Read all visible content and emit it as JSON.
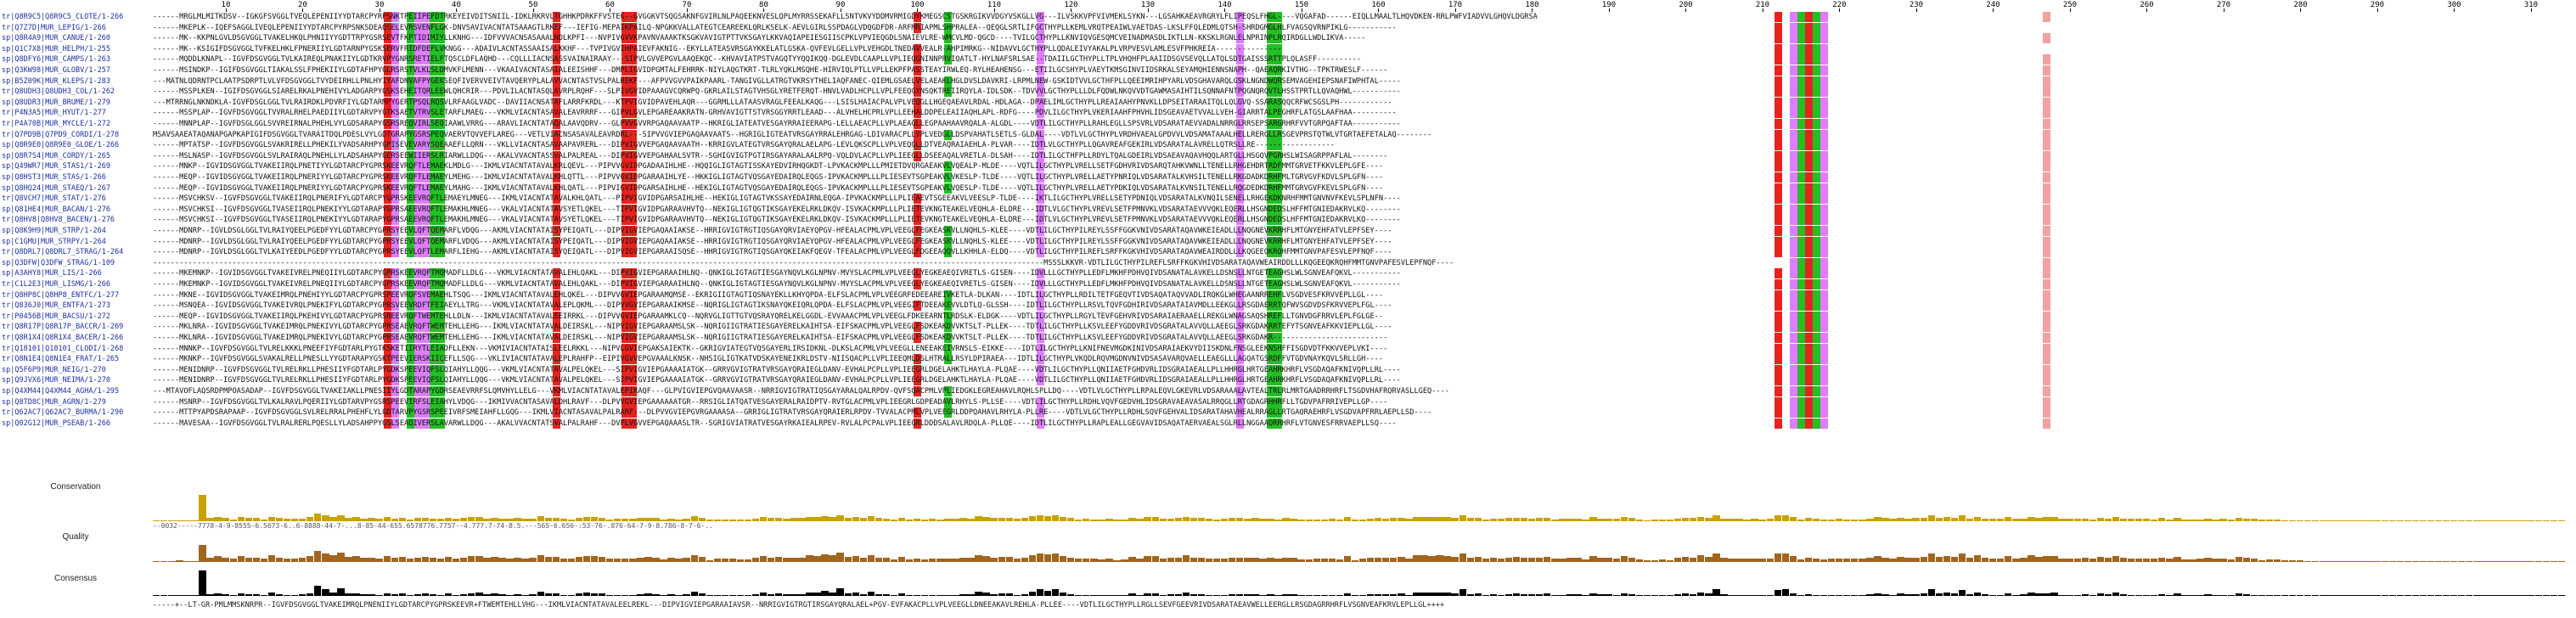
{
  "ruler": {
    "ticks": [
      "10",
      "20",
      "30",
      "40",
      "50",
      "60",
      "70",
      "80",
      "90",
      "100",
      "110",
      "120",
      "130",
      "140",
      "150",
      "160",
      "170",
      "180",
      "190",
      "200",
      "210",
      "220",
      "230",
      "240",
      "250",
      "260",
      "270",
      "280",
      "290",
      "300",
      "310"
    ]
  },
  "annotation_labels": {
    "conservation": "Conservation",
    "quality": "Quality",
    "consensus": "Consensus"
  },
  "sequences": [
    {
      "name": "tr|Q8R9C5|Q8R9C5_CLOTE/1-266",
      "seq": "------MRGLMLMITKDSV--IGKGFSVGGLTVEQLEPENIIYYDTARCPYRPSNKTPEIIPEFDTRKEYEIVDITSNIIL-IDKLRKRVLTGHHKPDRKFFVSTEG--GVGGKVTSQGSAKNFGVIRLNLPAQEEKNVESLQPLMYRRSSEKAFLLSNTVKVYDDMVRMIGDYKMEGSCSTGSKRGIKVVDGYVSKGLLVG---ILVSKKVPFVIVMEKLSYKN---LGSAHKAEAVRGRYLFLIPEQSLFHGL----VQGAFAD------EIQLLMAALTLHQVDKEN-RRLPWFVIADVVLGHQVLDGRSAFPLFAVQTIDNLYE-----"
    },
    {
      "name": "tr|Q7Z7D|MUR_LEPIG/1-266",
      "seq": "------MKEPLK--IQEFSAGGLIVEQLEPENIIYYDTARCPYRPSNKSDEAQSELEVRSVENFLGK-DNVSAVIVACNTATSAAAGTLRKEF---IEFIG-MEPAIKPAILQ-NPGKKVALLATEGTCEAREEKLQRLKSELK-AEVLGIRLSSPDAGLVDQGDFDR-ARFMRIAPMLSHPRALEA--QEQGLSRTLIFGCTHYPLLKEMLVRQTPEAIWLVAETDAS-LKSLFFQLEDMLQTSH-SHRDGMGLHLFVAGSQVRNPIKLG-----------"
    },
    {
      "name": "sp|Q8R4A9|MUR_CANUE/1-260",
      "seq": "------MK--KKPNLGVLDSGVGGLTVAKELHKQLPHNIIYYGDTTRPYGSRSEVTFKPTIDIMIYLLKNHG---IDFVVVACNSASAAALNDLKPFI---NVPIVGVVKPAVNVAAAKTKSGKVAVIGTPTTVKSGAYLKKVAQIAPEIESGIISCPKLVPVIEQGDLSNAIEVLRE-WMCVLMD-QGCD----TVILGCTHYPLLKNVIQVGESQMCVEINADMASDLIKTLLN-KKSKLRGNLELNPRINPLRQIRDGLLWDLIKVA-----"
    },
    {
      "name": "sp|Q1C7X8|MUR_HELPH/1-255",
      "seq": "------MK--KSIGIFDSGVGGLTVFKELHKLFPNERIIYLGDTARNPYGSKSERVFRIDFDEFLVKNGG---ADAIVLACNTASSAAISALKKHF---TVPIVGVIHPAIEVFAKNIG--EKYLLATEASVRSGAYKKELATLGSKA-QVFEVLGELLVPLVEHGDLTNEDAVVEALR-AHPIMRKG--NIDAVVLGCTHYPLLQDALEIVYAKALPLVRPVESVLAMLESVFPHKREIA---------------"
    },
    {
      "name": "sp|Q8DFY6|MUR_CAMPS/1-263",
      "seq": "------MQDDLKNAPL--IGVFDSGVGGLTVLKAIREQLPNAKIIYLGDTKRVPYGNRSRETIELFTQSCLDFLAQHD---CQLLLIACNSASSVAINAIRAAY---SIPVLGVVEPGVLAAQEKQC--KHVAVIATPSTVAGQTYYQQIKQQ-DGLEVDLCAAPLLVPLIEQGNINNPRVIQATLT-HYLNAFSRLSAE--TDAIILGCTHYPLLTPLVHQHFPLAAIIDSGVSEVQLLATQLSDTGAISSSRTTPLQLASFF----------"
    },
    {
      "name": "sp|Q3KW98|MUR_GLOBV/1-257",
      "seq": "------MSINDKP--IGIFDSGVGGLTIAKALSSLFPHEKIIYLGDTAFHPYGLRSRSTVLKLSLDMVKFLMENN---VKAAIVACNTASAIALEEISHHF---DMPLIGVIDPGMTALFEHRRK-NIYLAQGTKRT-TLRLYQKLMSQHE-HIRVIQLPTLLVPLLEKPFPASSTEAYIRWLEQ-RYLHEAHENSG---ETIILGCSHYPLVAEYTKMSGINVIIDSRKALSEYAMQHIENNSNAPH--QAEAQRKIVTHG--TPKTRWESLF------"
    },
    {
      "name": "sp|B5Z09K|MUR_KLEPS/1-283",
      "seq": "---MATNLQDRNTPCLAATPSDRPTLVLVFDSGVGGLTVYDEIRHLLPNLHYIYAFDNVAFPYGEKSEQFIVERVVEIVTAVQERYPLALAVVACNTASTVSLPALREKF---AFPVVGVVPAIKPAARL-TANGIVGLLATRGTVKRSYTHELIAQFANEC-QIEMLGSAELVELAEAKLHGLDVSLDAVKRI-LRPMLNEW-GSKIDTVVLGCTHFPLLQEEIMRIHPYARLVDSGHAVARQLGSKLNGNDWQRSEMVAGEHIEPSNAFIWPHTAL-----"
    },
    {
      "name": "tr|Q8UDH3|Q8UDH3_COL/1-262",
      "seq": "------MSSPLKEN--IGIFDSGVGGLSIARELRKALPNEHIVYLADGARPYGSKSEHEITQRLEEWLQHCRIR---PDVLILACNTASQLAVRPLRQHF---SLPIVGVIDPAAAGVCQRWPQ-GKRLAILSTAGTVHSGLYRETFERQT-HNVLVADLHCPLLVPLFEEQGYNSQKTREIIRQYLA-IDLSDK--TDVVVLGCTHYPLLLDLFQDWLNKQVVDTGAWMASAIHTILSQNNAFNTPQGNQRQVTLHSSTPRTLLQVAQHWL-----------"
    },
    {
      "name": "sp|Q8UDR3|MUR_BRUME/1-279",
      "seq": "---MTRRNGLNKNDKLA-IGVFDSGLGGLTVLRAIRDKLPDVRFIYLGDTARMPYGERTPSQLRQSVLRFAAGLVADC--DAVIIACNSATAFLARRFKRDL---KTPVIGVIDPAVEHLAQR---GGRMLLLATAASVRAGLFEEALKAQG---LSISLHAIACPALVPLVEQGLLHGEQAEAVLRDAL-HDLAGA--DPAELIMLGCTHYPLLREAIAAHYPNVKLLDPSEITARAAITQLLQLGVQ-SSARASQQCRFWCSGSLPH------------"
    },
    {
      "name": "tr|P4N3A5|MUR_HYUT/1-277",
      "seq": "------MSSPLAP--IGVFDSGVGGLTVVRALRHELPAEDIIYLGDTARVPYGTKSAETVTRVSLETARFLMAEG---VKMLVIACNTASAVALEAVRRRF---GIPVLGVLEPGAREAAKRATN-GRHVAVIGTTSTVRSGGYRRTLEAAD---ALVHELHCPRLVPLLEEHALDDPELEAIIAQHLAPL-RDFG----PDVLILGCTHYPLVKERIAAHFPHVHLIDSGEAVAETVVALLVEH-GIARRTALPEGHRFLATGSLAAFHAA----------"
    },
    {
      "name": "tr|P4A70B|MUR_MYCLE/1-272",
      "seq": "------MNNPLAP--IGVFDSGLGGLSVVREIRNALPHEHLVYLGDSARAPYGSRSREQVIRLSEQIAAWLVRRG---ARAVLIACNTATAQALAAVQDRV---GLPVVGVVRPGAQAAVAATP--HKRIGLIATEATVESGAYRRAIEERAPG-LELLAEACPLLVPLAEAGLLEGPAAHAAVRQALA-ALGDL----VDTLILGCTHYPLLRAHLEGLLSPSVRLVDSARATAEVVADALNRRGLRRSEPSARGRHRFVVTGRPQAFTAA-----------"
    },
    {
      "name": "tr|Q7PD9B|Q7PD9_CORDI/1-278",
      "seq": "MSAVSAAEATAQANAPGAPKAPIGIFDSGVGGLTVARAITDQLPDESLVYLGDTGRAPYGSRSPEQVAERVTQVVEFLAREG---VETLVIACNSASAVALEAVRDRL---SIPVVGVIEPGAQAAVAATS--HGRIGLIGTEATVRSGAYRRALEHRGAG-LDIVARACPLLVPLVEDGLLDSPVAHATLSETLS-GLDAL----VDTLVLGCTHYPLVRDHVAEALGPDVVLVDSAMATAAALHELLRERGLLRSGEVPRSTQTWLVTGRTAEFETALAQ--------"
    },
    {
      "name": "sp|Q8R9E0|Q8R9E0_GLOE/1-266",
      "seq": "------MPTATSP--IGVFDSGVGGLSVAKRIRELLPHEKILYVADSARHPYGPISEVEVARYSQEAAEFLLQRN---VKLLVIACNTASAVAAPAVRERL---DIPVIGVVEPGAQAAVAATH--KRRIGVLATEGTVRSGAYQRALAELAPG-LEVLQKSCPLLVPLVEQGLLDTVEAQRAIAEHLA-PLVAR----IDTLVLGCTHYPLLQGAVREAFGEKIRLVDSARATALAVRELLQTRSLLRE------------------"
    },
    {
      "name": "sp|Q8R7S4|MUR_CORDY/1-265",
      "seq": "------MSLNASP--IGVFDSGVGGLSVLRAIRAQLPNEHLLYLADSAHAPYGERSEEWIIERSLRIARWLLDQG---AKALVVACNTASSVALPALREAL---DIPVIGVVEPGAHAALSVTR--SGHIGVIGTPGTIRSGAYARALAALRPQ-VQLDVLACPLLVPLIEEGLLDSEEAQALVRETLA-DLSAH----IDTLILGCTHFPLLRDYLTQALGDEIRLVDSAEAVAQAVHQQLARTGLLHSGQVPGRHSLWISAGRPPAFLAL--------"
    },
    {
      "name": "sp|Q49WR7|MUR_STAS1/1-269",
      "seq": "------MNKP--IGVIDSGVGGLTVAKEIIRQLPNETIYYLGDTARCPYGPRSKEEVRQFTLEMAEKLMDLG---IKMLVIACNTATAVALKRLQEVL---PIPVVGVIDPGADAAIHLHE--HQQIGLIGTAGTISSKAYEDVIRHQGKDT-LPVKACKMPLLLPMIETDVQRGAEAKVLVQEALP-MLDE----VQTLILGCTHYPLVRELLSETFGDHVRIVDSARQTAHKVWNLLTENELLRHGEHDRTRDFMMTGRVETFKKVLEPLGFE----"
    },
    {
      "name": "sp|Q8HST3|MUR_STAS/1-266",
      "seq": "------MEQP--IGVIDSGVGGLTVAKEIIRQLPNERIYYLGDTARCPYGPRSKEEVRQFTLEMAEYLMEHG---IKMLVIACNTATAVALKHLQTTL---PIPVVGVIDPGARAAIHLYE--HKKIGLIGTAGTVQSGAYEDAIRQLEQGS-IPVKACKMPLLLPLIESEVTSGPEAKVLVKESLP-TLDE----VQTLILGCTHYPLVRELLAETYPNRIQLVDSARATALKVHSILTENELLRKGDADKDRHFMLTGRVGVFKDVLSPLGFN----"
    },
    {
      "name": "sp|Q8HQ24|MUR_STAEQ/1-267",
      "seq": "------MEQP--IGVIDSGVGGLTVAKEIIRQLPNERIYYLGDTARCPYGPRSKEEVRQFTLEMAEYLMAHG---IKMLVIACNTATAVALKHLQATL---PIPVIGVIDPGARSAIHLHE--HEKIGLIGTAGTVQSGAYEDAIRQLEQGS-IPVKACKMPLLLPLIESEVTSGPEAKVLVQESLP-TLDE----VQTLILGCTHYPLVRELLAETYPDKIQLVDSARATALKVNSILTENELLRQGDEDKDRHFMMTGRVGVFKEVLSPLGFN----"
    },
    {
      "name": "tr|Q8VCH7|MUR_STAT/1-276",
      "seq": "------MSVCHKSV--IGVFDSGVGGLTVAKEIIRQLPNERIFYLGDTARCPYGPRSKEEVRQFTLEMAEYLMNEG---IKMLVIACNTATAVALKHLQATL---PIPVIGVIDPGARSAIHLHE--HEKIGLIGTAGTVKSSAYEDAIRNLEQGA-IPVKACKMPLLLPLIEAEVTSGEEAKVLVEESLP-TLDE----IKTLILGCTHYPLVRELLSETYPDNIQLVDSARATALKVNQILSENELLRHGEKDKNRHFMMTGNVNVFKEVLSPLNFN----"
    },
    {
      "name": "sp|Q81HE4|MUR_BACAN/1-276",
      "seq": "------MSVCHKSI--IGVFDSGVGGLTVASEIIRQLPNEKIYYLGDTARAPYGPRSAEEVRQFTLEMAKHLMNEG---VKALVIACNTATAVSYETLQKEL---TIPVIGVIDPGARAAVHVTQ--NEKIGLIGTQGTIKSGAYEKELRKLDKQV-ISVKACKMPLLLPLIETEVKNGTEAKELVEQHLA-ELDRE---IDTLVLGCTHYPLVREVLSETFPMNVKLVDSARATAEVVVQKLEQERLLHSGNDEDSLHFFMTGNIEDAKRVLKQ--------"
    },
    {
      "name": "tr|Q8HV8|Q8HV8_BACEN/1-276",
      "seq": "------MSVCHKSI--IGVFDSGVGGLTVASEIIRQLPNEKIYYLGDTARAPYGPRSAEEVRQFTLEMAKHLMNEG---VKALVIACNTATAVSYETLQKEL---TIPVIGVIDPGARAAVHVTQ--NEKIGLIGTQGTIKSGAYEKELRKLDKQV-ISVKACKMPLLLPLIETEVKNGTEAKELVEQHLA-ELDRE---IDTLVLGCTHYPLVREVLSETFPMNVKLVDSARATAEVVVQKLEQERLLHSGNDEDSLHFFMTGNIEDAKRVLKQ--------"
    },
    {
      "name": "sp|Q8K9H9|MUR_STRP/1-264",
      "seq": "------MDNRP--IGVLDSGLGGLTVLRAIYQEELPGEDFYYLGDTARCPYGPRSYEEVLQFTQEMARFLVDQG---AKMLVIACNTATAISYPEIQATL---DIPVIGVIEPGAQAAIAKSE--HRRIGVIGTRGTIQSGAYQRVIAEYQPGV-HFEALACPMLVPLVEEGLFEGKEASKVLLNQHLS-KLEE----VDTLILGCTHYPILREYLSSFFGGKVNIVDSARATAQAVWKEIEADLLLNQGNEVKRRHFLMTGNYEHFATVLEPFSEY----"
    },
    {
      "name": "sp|C1GMU|MUR_STRPY/1-264",
      "seq": "------MDNRP--IGVLDSGLGGLTVLRAIYQEELPGEDFYYLGDTARCPYGPRSYEEVLQFTQEMARFLVDQG---AKMLVIACNTATAISYPEIQATL---DIPVIGVIEPGAQAAIAKSE--HRRIGVIGTRGTIQSGAYQRVIAEYQPGV-HFEALACPMLVPLVEEGLFEGKEASKVLLNQHLS-KLEE----VDTLILGCTHYPILREYLSSFFGGKVNIVDSARATAQAVWKEIEADLLLNQGNEVKRRHFLMTGNYEHFATVLEPFSEY----"
    },
    {
      "name": "tr|Q8DRL7|Q8DRL7_STRAG/1-264",
      "seq": "------MDNRP--IGVLDSGLGGLTVLKAIYEEDLPGEDFYYLGDTARCPYGPRSYEEVLQFTLEMARFLIEHG---AKMLVIACNTATAISYQEIQATL---DIPVIGVIEPGARAAISQSE--HHRIGVIGTRGTIQSGAYQKEIAKFQEGV-TFEALACPMLVPLVEEGLFDGEEAQQVLLKHHLA-ELDQ----VDTLILGCTHYPILREFLSRFFKGKVHIVDSARATAQAVWEAIRDDLLLKQGEEQKRQHFMMTGNVPAFESVLEPFNQF----"
    },
    {
      "name": "sp|Q3DFW|Q3DFW_STRAG/1-109",
      "seq": "----------------------------------------------------------------------------------------------------------------------------------------------------------------------------------------------------------MSSSLKKVR-VDTLILGCTHYPILREFLSRFFKGKVHIVDSARATAQAVWEAIRDDLLLKQGEEQKRQHFMMTGNVPAFESVLEPFNQF----"
    },
    {
      "name": "sp|A3AHY8|MUR_LIS/1-266",
      "seq": "------MKEMNKP--IGVIDSGVGGLTVAKEIVRELPNEQIIYLGDTARCPYGPRSKEEVRQFTMQMADFLLDLG---VKMLVIACNTATAVALEHLQAKL---DIPVIGVIEPGARAAIHLNQ--QNKIGLIGTAGTIESGAYNQVLKGLNPNV-MVYSLACPMLVPLVEEGLYEGKEAEQIVRETLS-GISEN----IDVLLLGCTHYPLLEDFLMKHFPDHVQIVDSANATALAVKELLDSNSLLNTGETEAGHSLWLSGNVEAFQKVL-----------"
    },
    {
      "name": "tr|C1L2E3|MUR_LISMG/1-266",
      "seq": "------MKEMNKP--IGVIDSGVGGLTVAKEIVRELPNEQIIYLGDTARCPYGPRSKEEVRQFTMQMADFLLDLG---VKMLVIACNTATAVALEHLQAKL---DIPVIGVIEPGARAAIHLNQ--QNKIGLIGTAGTIESGAYNQVLKGLNPNV-MVYSLACPMLVPLVEEGLYEGKEAEQIVRETLS-GISEN----IDVLLLGCTHYPLLEDFLMKHFPDHVQIVDSANATALAVKELLDSNSLLNTGETEAGHSLWLSGNVEAFQKVL-----------"
    },
    {
      "name": "tr|Q8HP8C|Q8HP8_ENTFC/1-277",
      "seq": "------MKNE--IGVIDSGVGGLTVAKEIMRQLPNEHIYYLGDTARCPYGPRSPEEVRQFSVEMAEHLTSQG---IKMLVIACNTATAVALEHLQKEL---DIPVVGVIEPGARAAMQMSE--EKRIGIIGTAGTIQSNAYEKLLKHYQPDA-ELFSLACPMLVPLVEEGRFEDEEAREIVKETLA-DLKAN----IDTLILGCTHYPLLRDILTETFGEQVTIVDSAQATAQVVADLIRQKGLWHEGAANRREHFLVSGDVESFKRVVEPLLGL----"
    },
    {
      "name": "tr|Q836J0|MUR_ENTFA/1-273",
      "seq": "------MSNQEA--IGVIDSGVGGLTVAKEIVRQLPNEKIFYLGDTARCPYGPRSVEEVRDFTFEIAEYLLTRG---VKMLVIACNTATAVALEPLQKML---DIPVVGVIEPGARAAIKMSE--NQRIGLIGTAGTIKSNAYQKEIQRLQPDA-ELFSLACPMLVPLVEEGIFTDEEAKEVVLDTLQ-GLSSH----IDTLILGCTHYPLLRSVLTQVFGDHIRIVDSARATAIAVMDLLEEKGLLRSGDAERRTQFWVSGDVDSFKRVVEPLFGL----"
    },
    {
      "name": "tr|P0456B|MUR_BACSU/1-272",
      "seq": "------MEQP--IGVIDSGVGGLTVAKEIIRQLPKEHIVYLGDTARCPYGPRSREEVRQFTWEMTEHLLDLN---IKMLVIACNTATAVALEEIRRKL---DIPVVGVIEPGARAAMKLCQ--NQRVGLIGTTGTVQSRAYQRELKELGGDL-EVVAAACPMLVPLVEEGLFDKEEARNTLRDSLK-ELDGK----VDTLILGCTHYPLLRGYLTEVFGEHVRIVDSARAIAERAAELLREKGLWNAGSAQSHREFLLTGNVDGFRRVLEPLFGLGE--"
    },
    {
      "name": "tr|Q8R17P|Q8R17P_BACCR/1-269",
      "seq": "------MKLNRA--IGVIDSGVGGLTVAKEIMRQLPNEKIVYLGDTARCPYGPRSEAEVRQFTWEMTEHLLEHG---IKMLVIACNTATAVALDEIRSKL---NIPVIGVIEPGARAAMSLSK--NQRIGIIGTRATIESGAYERELKAIHTSA-EIFSKACPMLVPLVEEGLFSDKEAKDVVKTSLT-PLLEK----TDTLILGCTHYPLLKSVLEEFYGDDVRIVDSGRATALAVVQLLAEEGLSRKGDAKRRTEFYTSGNVEAFKKVIEPLLGL----"
    },
    {
      "name": "tr|Q8R1X4|Q8R1X4_BACER/1-266",
      "seq": "------MKLNRA--IGVIDSGVGGLTVAKEIMRQLPNEKIVYLGDTARCPYGPRSEAEVRQFTWEMTEHLLEHG---IKMLVIACNTATAVALDEIRSKL---NIPVIGVIEPGARAAMSLSK--NQRIGIIGTRATIESGAYERELKAIHTSA-EIFSKACPMLVPLVEEGLFSDKEAKDVVKTSLT-PLLEK----TDTLILGCTHYPLLKSVLEEFYGDDVRIVDSGRATALAVVQLLAEEGLSRKGDAKR--------------------------"
    },
    {
      "name": "tr|Q18101|Q18101_CLODI/1-268",
      "seq": "------MNNKP--IGVFDSGVGGLTVLRELKKKLPNEEFIYFGDTARLPYGTKSKETIIRYTLEIADFLLEKN---VKMIVIACNTATAISLEELRKKL---NIPVLGVIEPGAKSAIEKTK--GKRIGVIATEGTVQSGAYERLIRSIDKNL-DLKSLACPMLVPLVEEGLLENEEAKEIVRNSLS-EIKKE----IDTLILGCTHYPLLKNIFNEVMGDKINIVDSARAIAEKVYDIISKDNLFNSGLEEKNSHFFISGDVDTFKKVVEPLVKI----"
    },
    {
      "name": "tr|Q8N1E4|Q8N1E4_FRAT/1-265",
      "seq": "------MKNKP--IGVFDSGVGGLSVAKALRELLPNESLLYYGDTARAPYGSKTPEEVIERSKIICEFLLSQG---VKLIVIACNTATAVALEPLRAHFP--EIPIVGVVEPGVAAALKNSK--NHSIGLIGTKATVDSKAYENEIKRLDSTV-NIISQACPLLVPLIEEQMLDSLHTRALLRSYLDPIRAEA---IDTLILGCTHYPLVKQDLRQVMGDNVNIVDSASAVARQVAELLEAEGLLLAGQATGSRDFFVTGDVNAYKQVLSRLLGH----"
    },
    {
      "name": "sp|Q5F6P9|MUR_NEIG/1-270",
      "seq": "------MENIDNRP--IGVFDSGVGGLTVLRELRKLLPHESIIYFGDTARLPYGDKSPEEVIQFSLQIAHYLLQQG---VKMLVIACNTATAVALPELQKEL---SIPVIGVIEPGAAAAIATGK--GRRVGVIGTRATVRSGAYQRAIEGLDANV-EVHALPCPLLVPLIEEGRLDGELAHKTLHAYLA-PLQAE----VDTLILGCTHYPLLQNIIAETFGHDVRLIDSGRAIAEALLPLLHHRGLHRTGEAHRKHRFLVSGDAQAFKNIVQPLLRL----"
    },
    {
      "name": "sp|Q9JVX6|MUR_NEIMA/1-270",
      "seq": "------MENIDNRP--IGVFDSGVGGLTVLRELRKLLPHESIIYFGDTARLPYGDKSPEEVIQFSLQIAHYLLQQG---VKMLVIACNTATAVALPELQKEL---SIPVIGVIEPGAAAAIATGK--GRRVGVIGTRATVRSGAYQRAIEGLDANV-EVHALPCPLLVPLIEEGRLDGELAHKTLHAYLA-PLQAE----VDTLILGCTHYPLLQNIIAETFGHDVRLIDSGRAIAEALLPLLHHRGLHRTGEAHRKHRFLVSGDAQAFKNIVQPLLRL----"
    },
    {
      "name": "sp|Q4XM44|Q4XM44_AGHA/1-295",
      "seq": "---MTAVOFLAQSRDPMPOASADAP--IGVFDSGVGGLTVAKEIAKLLPNESIIYLGDTARAPYGDRSEAEVRRFSLQMVHYLLELG---VKMLVIACNTATAVALEPIRAQF---GLPVIGVIEPGVQAAVAASR--NRRIGVIGTRATIQSGAYARALQALRPDV-QVFSQACPMLVPLIEDGKLEGREAHAVLRQHLSPLLDQ----VDTLVLGCTHYPLLRPALEQVLGKEVRLVDSARAAALAVTEALTRLRLMRTGAADRRHRFLTSGDVHAFRQRVASLLGEQ----"
    },
    {
      "name": "sp|Q8TD8C|MUR_AGRN/1-279",
      "seq": "------MSNRP--IGVFDSGVGGLTVLKALRAVLPQERIIYLGDTARVPYGSRSPEEVIRFSLEIAHYLVDQG---IKMIVVACNTASAVALDHLRAVF---DLPVVGVIEPGAAAAAATGR--RRSIGLIATQATVESGAYERALRAIDPTV-RVTGLACPMLVPLIEEGRLGDPEADAVLRHYLS-PLLSE----VDTLILGCTHYPLLRDHLVQVFGEDVHLIDSGRAVAEAVASALRRQGLLRTGDAGRHHRFLLTGDVPAFRRIVEPLLGP----"
    },
    {
      "name": "tr|Q62AC7|Q62AC7_BURMA/1-290",
      "seq": "------MTTPYAPDSRAPAAP--IGVFDSGVGGLSVLRELRRALPHEHFLYLGDTARVPYGSRSPEEIVRFSMEIAHFLLGQG---IKMLVIACNTASAVALPALRARF---DLPVVGVIEPGVRGAAAASA--GRRIGLIGTRATVRSGAYQRAIERLRPDV-TVVALACPMLVPLVEEGRLDDPQAHAVLRHYLA-PLLRE----VDTLVLGCTHYPLLRDHLSQVFGEHVALIDSARATAHAVHEALRRAGLLRTGAQRAEHRFLVSGDVAPFRRLAEPLLSD----"
    },
    {
      "name": "sp|Q02G12|MUR_PSEAB/1-266",
      "seq": "------MAVESAA--IGVFDSGVGGLTVLRALRERLPQESLLYLADSAHPPYGSLSEAQIVERSLAVARWLLDQG---AKALVVACNTATSVALPALRAHF---DVPLVGVVEPGAQAAASLTR--SGRIGVIATRATVESGAYRKAIEALRPEV-RVLALPCPALVPLIEEGRLDDDSALAVLRDQLA-PLLQE----IDTLILGCTHYPLLRAPLEALLGEGVAVIDSAQATAERVAEALSGLRLLNGGAAQRRHRFLVTGNVESFRRVAEPLLSQ----"
    }
  ],
  "highlight_columns": [
    {
      "col": 31,
      "color": "#e8231f"
    },
    {
      "col": 32,
      "color": "#e07cff"
    },
    {
      "col": 34,
      "color": "#22c022"
    },
    {
      "col": 35,
      "color": "#e07cff"
    },
    {
      "col": 36,
      "color": "#e07cff"
    },
    {
      "col": 37,
      "color": "#22c022"
    },
    {
      "col": 38,
      "color": "#22c022"
    },
    {
      "col": 53,
      "color": "#e8231f"
    },
    {
      "col": 62,
      "color": "#e8231f"
    },
    {
      "col": 63,
      "color": "#e8231f"
    },
    {
      "col": 100,
      "color": "#e8231f"
    },
    {
      "col": 104,
      "color": "#22c022"
    },
    {
      "col": 116,
      "color": "#e07cff"
    },
    {
      "col": 142,
      "color": "#e07cff"
    },
    {
      "col": 146,
      "color": "#22c022"
    },
    {
      "col": 147,
      "color": "#22c022"
    },
    {
      "col": 212,
      "color": "#e8231f"
    },
    {
      "col": 214,
      "color": "#e07cff"
    },
    {
      "col": 215,
      "color": "#22c022"
    },
    {
      "col": 216,
      "color": "#e8231f"
    },
    {
      "col": 217,
      "color": "#22c022"
    },
    {
      "col": 218,
      "color": "#e07cff"
    },
    {
      "col": 247,
      "color": "#f2a0a0"
    }
  ],
  "conservation_numbers": "--0032-----7778-4-9-8555-6.5673-6..6-8888-44-7-...8-85-44-655.6578776.7757--4.777.7-74-8.5.---565-6.656-:53-76-.876-64-7-9-8.786-8-7-6-..",
  "consensus": "-----+--LT-GR-PMLMMSKNRPR--IGVFDSGVGGLTVAKEIMRQLPNENIIYLGDTARCPYGPRSKEEVR+FTWEMTEHLLVHG---IKMLVIACNTATAVALEELREKL---DIPVIGVIEPGARAAIAVSR--NRRIGVIGTRGTIRSGAYQRALAEL+PGV-EVFAKACPLLVPLVEEGLLDNEEAKAVLREHLA-PLLEE----VDTLILGCTHYPLLRGLLSEVFGEEVRIVDSARATAEAVWELLEERGLLRSGDAGRRHRFLVSGNVEAFKRVLEPLLGL++++",
  "colors": {
    "conservation_bar": "#c8a200",
    "quality_bar": "#a0661e",
    "consensus_bar": "#000000",
    "name_text": "#1b2fa8"
  }
}
